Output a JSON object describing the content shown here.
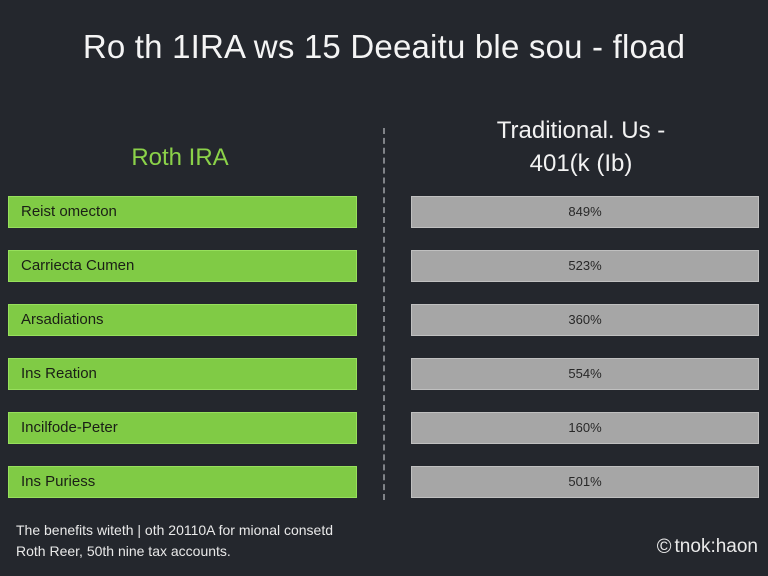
{
  "page": {
    "title": "Ro th 1IRA  ws 15 Deeaitu ble sou - fload"
  },
  "columns": {
    "left_heading": "Roth IRA",
    "right_heading_line1": "Traditional. Us -",
    "right_heading_line2": "401(k (Ib)"
  },
  "rows": [
    {
      "label": "Reist omecton",
      "value": "849%"
    },
    {
      "label": "Carriecta Cumen",
      "value": "523%"
    },
    {
      "label": "Arsadiations",
      "value": "360%"
    },
    {
      "label": "Ins Reation",
      "value": "554%"
    },
    {
      "label": "Incilfode-Peter",
      "value": "160%"
    },
    {
      "label": "Ins Puriess",
      "value": "501%"
    }
  ],
  "footer": {
    "note_line1": "The benefits witeth | oth 20110A for mional consetd",
    "note_line2": "Roth Reer, 50th nine tax accounts.",
    "brand_icon": "©",
    "brand_name": "tnok:haon"
  },
  "colors": {
    "background": "#24272d",
    "accent_green": "#80cb45",
    "neutral_gray": "#a6a6a6"
  }
}
